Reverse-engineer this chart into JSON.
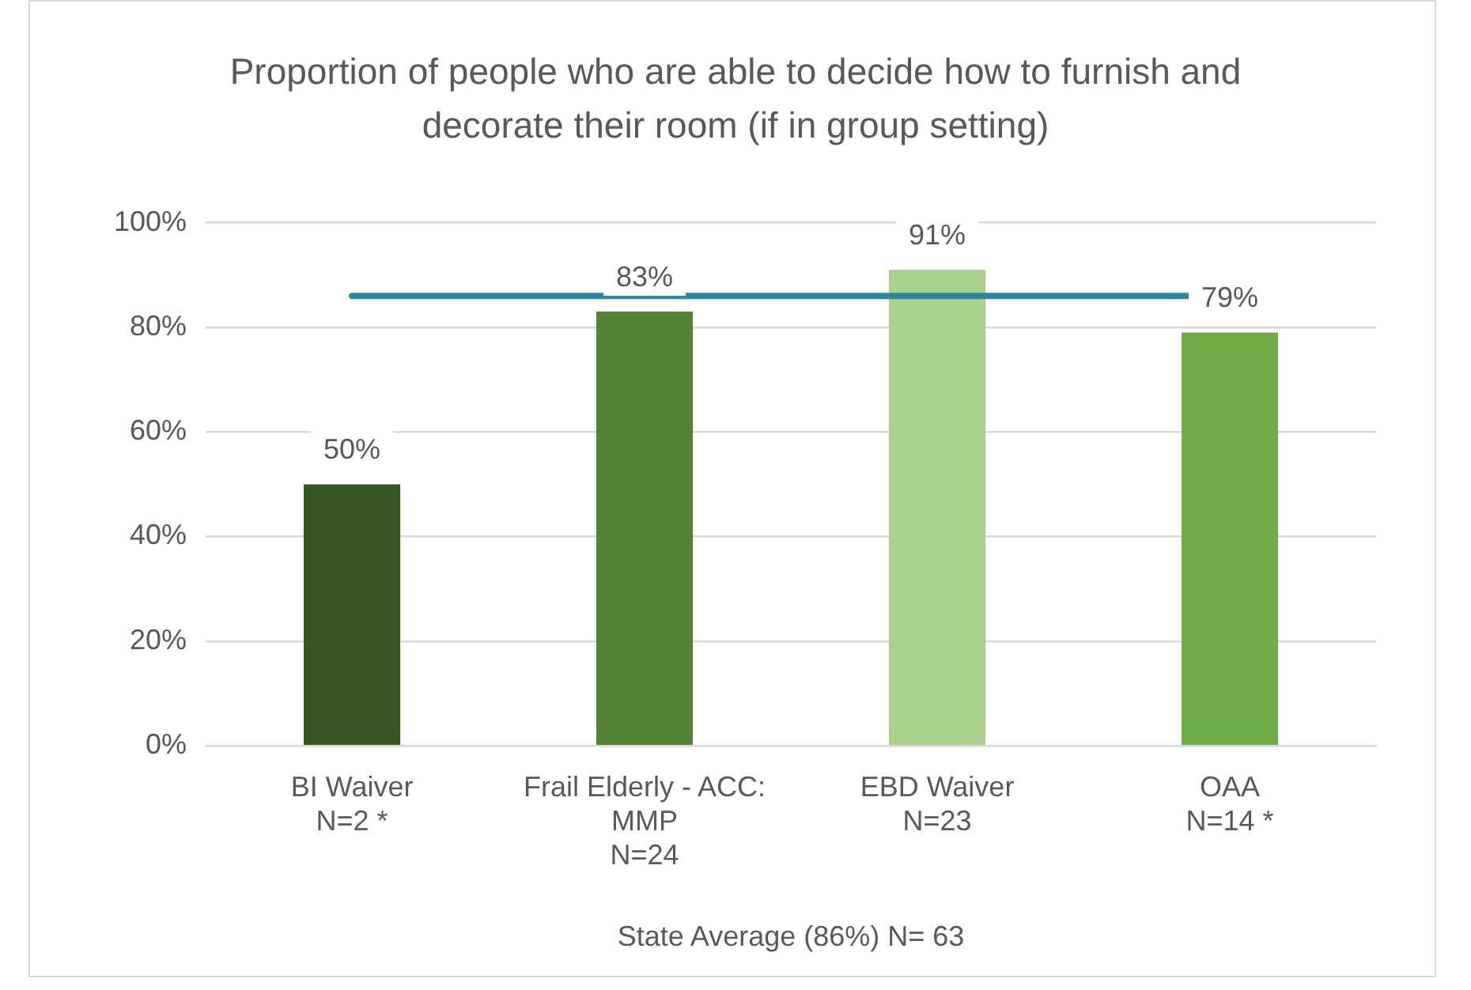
{
  "chart_data": {
    "type": "bar",
    "title": "Proportion of people who are able to decide how to furnish and decorate their room (if in group setting)",
    "categories": [
      "BI Waiver\nN=2 *",
      "Frail Elderly - ACC:\nMMP\nN=24",
      "EBD Waiver\nN=23",
      "OAA\nN=14 *"
    ],
    "values": [
      50,
      83,
      91,
      79
    ],
    "colors": [
      "#375623",
      "#548235",
      "#a9d18e",
      "#70ad47"
    ],
    "value_labels": [
      "50%",
      "83%",
      "91%",
      "79%"
    ],
    "xlabel": "State Average (86%) N= 63",
    "ylim": [
      0,
      100
    ],
    "yticks": [
      {
        "value": 0,
        "label": "0%"
      },
      {
        "value": 20,
        "label": "20%"
      },
      {
        "value": 40,
        "label": "40%"
      },
      {
        "value": 60,
        "label": "60%"
      },
      {
        "value": 80,
        "label": "80%"
      },
      {
        "value": 100,
        "label": "100%"
      }
    ],
    "ref_lines": [
      {
        "axis": "y",
        "value": 86,
        "color": "#31859c"
      }
    ],
    "grid": "y",
    "legend": false
  }
}
